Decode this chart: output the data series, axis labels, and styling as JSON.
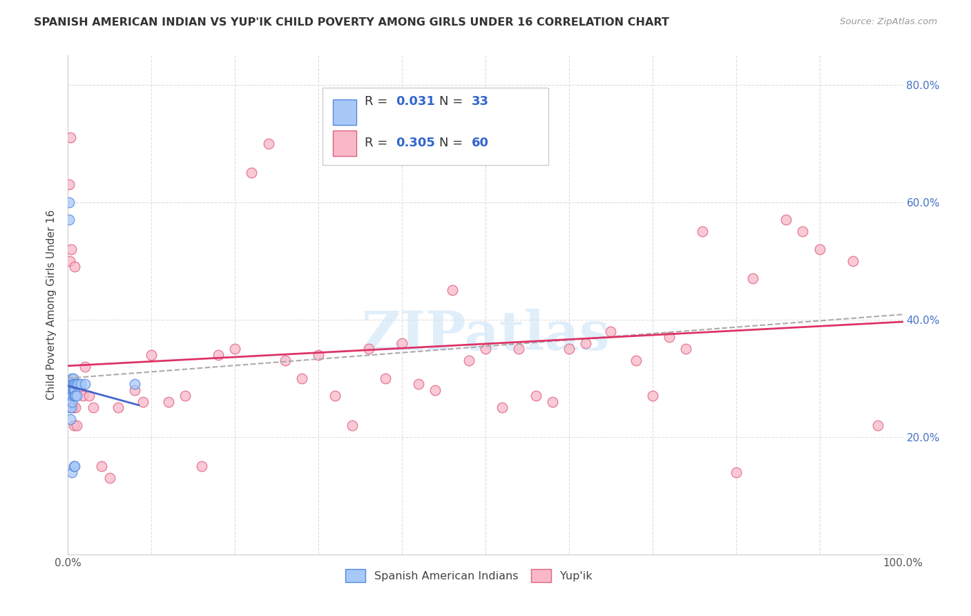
{
  "title": "SPANISH AMERICAN INDIAN VS YUP'IK CHILD POVERTY AMONG GIRLS UNDER 16 CORRELATION CHART",
  "source": "Source: ZipAtlas.com",
  "ylabel": "Child Poverty Among Girls Under 16",
  "xlim": [
    0,
    1.0
  ],
  "ylim": [
    0,
    0.85
  ],
  "ytick_positions": [
    0.2,
    0.4,
    0.6,
    0.8
  ],
  "ytick_labels": [
    "20.0%",
    "40.0%",
    "60.0%",
    "80.0%"
  ],
  "R_blue": 0.031,
  "N_blue": 33,
  "R_pink": 0.305,
  "N_pink": 60,
  "legend_label_blue": "Spanish American Indians",
  "legend_label_pink": "Yup'ik",
  "blue_fill": "#a8c8f8",
  "blue_edge": "#5588dd",
  "pink_fill": "#f8b8c8",
  "pink_edge": "#e06080",
  "blue_line_color": "#4466cc",
  "pink_line_color": "#dd3366",
  "dash_line_color": "#aaaaaa",
  "blue_points_x": [
    0.001,
    0.001,
    0.002,
    0.002,
    0.003,
    0.003,
    0.003,
    0.004,
    0.004,
    0.004,
    0.005,
    0.005,
    0.005,
    0.005,
    0.005,
    0.006,
    0.006,
    0.006,
    0.007,
    0.007,
    0.007,
    0.007,
    0.008,
    0.008,
    0.008,
    0.009,
    0.009,
    0.01,
    0.01,
    0.012,
    0.015,
    0.02,
    0.08
  ],
  "blue_points_y": [
    0.6,
    0.57,
    0.27,
    0.25,
    0.29,
    0.27,
    0.23,
    0.28,
    0.27,
    0.25,
    0.3,
    0.28,
    0.27,
    0.26,
    0.14,
    0.3,
    0.29,
    0.28,
    0.29,
    0.28,
    0.27,
    0.15,
    0.28,
    0.27,
    0.15,
    0.29,
    0.27,
    0.29,
    0.27,
    0.29,
    0.29,
    0.29,
    0.29
  ],
  "pink_points_x": [
    0.001,
    0.002,
    0.003,
    0.004,
    0.005,
    0.006,
    0.007,
    0.008,
    0.009,
    0.01,
    0.015,
    0.018,
    0.02,
    0.025,
    0.03,
    0.04,
    0.05,
    0.06,
    0.08,
    0.09,
    0.1,
    0.12,
    0.14,
    0.16,
    0.18,
    0.2,
    0.22,
    0.24,
    0.26,
    0.28,
    0.3,
    0.32,
    0.34,
    0.36,
    0.38,
    0.4,
    0.42,
    0.44,
    0.46,
    0.48,
    0.5,
    0.52,
    0.54,
    0.56,
    0.58,
    0.6,
    0.62,
    0.65,
    0.68,
    0.7,
    0.72,
    0.74,
    0.76,
    0.8,
    0.82,
    0.86,
    0.88,
    0.9,
    0.94,
    0.97
  ],
  "pink_points_y": [
    0.63,
    0.5,
    0.71,
    0.52,
    0.28,
    0.25,
    0.22,
    0.49,
    0.25,
    0.22,
    0.28,
    0.27,
    0.32,
    0.27,
    0.25,
    0.15,
    0.13,
    0.25,
    0.28,
    0.26,
    0.34,
    0.26,
    0.27,
    0.15,
    0.34,
    0.35,
    0.65,
    0.7,
    0.33,
    0.3,
    0.34,
    0.27,
    0.22,
    0.35,
    0.3,
    0.36,
    0.29,
    0.28,
    0.45,
    0.33,
    0.35,
    0.25,
    0.35,
    0.27,
    0.26,
    0.35,
    0.36,
    0.38,
    0.33,
    0.27,
    0.37,
    0.35,
    0.55,
    0.14,
    0.47,
    0.57,
    0.55,
    0.52,
    0.5,
    0.22
  ],
  "watermark_text": "ZIPatlas",
  "background_color": "#ffffff",
  "grid_color": "#dddddd"
}
